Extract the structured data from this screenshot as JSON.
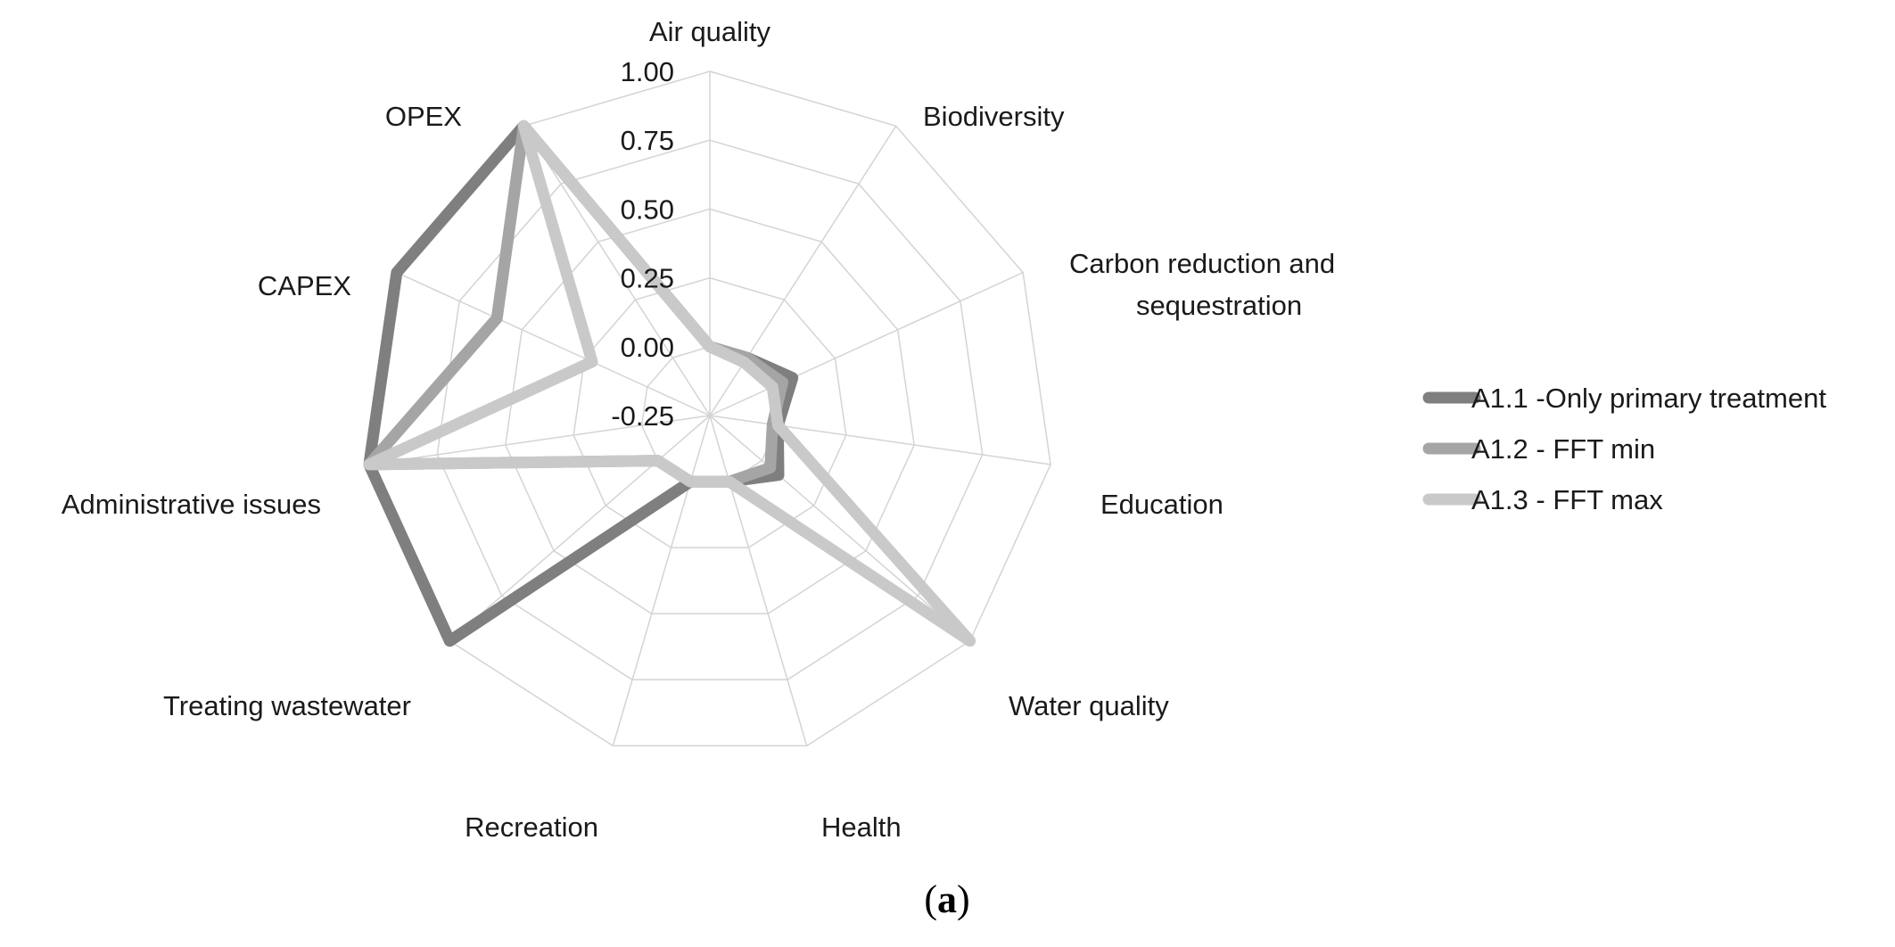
{
  "chart_data": {
    "type": "radar",
    "title": "",
    "axes": [
      "Air quality",
      "Biodiversity",
      "Carbon reduction and sequestration",
      "Education",
      "Water quality",
      "Health",
      "Recreation",
      "Treating wastewater",
      "Administrative issues",
      "CAPEX",
      "OPEX"
    ],
    "rmin": -0.25,
    "rmax": 1.0,
    "ticks": [
      -0.25,
      0.0,
      0.25,
      0.5,
      0.75,
      1.0
    ],
    "tick_labels": [
      "-0.25",
      "0.00",
      "0.25",
      "0.50",
      "0.75",
      "1.00"
    ],
    "series": [
      {
        "name": "A1.1 -Only primary treatment",
        "color": "#7f7f7f",
        "values": [
          0.0,
          0.0,
          0.08,
          0.0,
          0.08,
          0.0,
          0.0,
          1.0,
          1.0,
          1.0,
          1.0
        ]
      },
      {
        "name": "A1.2 - FFT min",
        "color": "#a5a5a5",
        "values": [
          0.0,
          0.0,
          0.04,
          -0.02,
          0.04,
          0.0,
          0.0,
          0.0,
          1.0,
          0.6,
          1.0
        ]
      },
      {
        "name": "A1.3 - FFT max",
        "color": "#c9c9c9",
        "values": [
          0.0,
          -0.02,
          0.0,
          0.0,
          1.0,
          0.0,
          0.0,
          0.0,
          1.0,
          0.22,
          1.0
        ]
      }
    ],
    "legend_position": "right"
  },
  "caption": {
    "open": "(",
    "letter": "a",
    "close": ")"
  }
}
